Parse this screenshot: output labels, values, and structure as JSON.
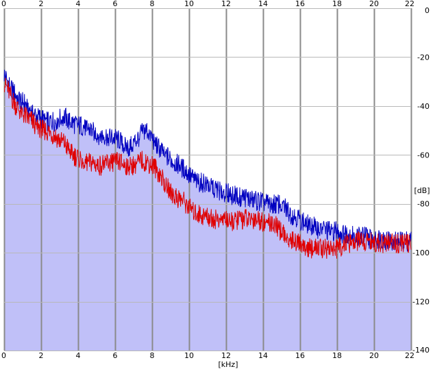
{
  "chart_data": {
    "type": "area",
    "xlabel": "[kHz]",
    "ylabel": "[dB]",
    "xlim": [
      0,
      22
    ],
    "ylim": [
      -140,
      0
    ],
    "x_ticks": [
      0,
      2,
      4,
      6,
      8,
      10,
      12,
      14,
      16,
      18,
      20,
      22
    ],
    "y_ticks": [
      0,
      -20,
      -40,
      -60,
      -80,
      -100,
      -120,
      -140
    ],
    "grid": true,
    "x_step_khz": 0.25,
    "series": [
      {
        "color": "#0000c0",
        "values": [
          -27,
          -31,
          -34,
          -37,
          -38,
          -40,
          -42,
          -44,
          -45,
          -46,
          -46,
          -46,
          -45,
          -44,
          -46,
          -47,
          -48,
          -48,
          -49,
          -50,
          -51,
          -52,
          -52,
          -53,
          -53,
          -54,
          -56,
          -57,
          -55,
          -53,
          -50,
          -50,
          -53,
          -56,
          -58,
          -60,
          -62,
          -63,
          -64,
          -66,
          -68,
          -70,
          -71,
          -71,
          -72,
          -73,
          -74,
          -75,
          -75,
          -76,
          -76,
          -77,
          -77,
          -78,
          -78,
          -79,
          -79,
          -80,
          -80,
          -80,
          -80,
          -82,
          -84,
          -85,
          -86,
          -88,
          -88,
          -89,
          -90,
          -90,
          -91,
          -91,
          -91,
          -92,
          -92,
          -92,
          -93,
          -93,
          -93,
          -94,
          -94,
          -94,
          -94,
          -95,
          -95,
          -95,
          -95,
          -95,
          -95
        ]
      },
      {
        "color": "#e00000",
        "values": [
          -30,
          -34,
          -38,
          -41,
          -43,
          -45,
          -46,
          -48,
          -49,
          -50,
          -51,
          -52,
          -54,
          -55,
          -58,
          -60,
          -61,
          -62,
          -63,
          -63,
          -64,
          -64,
          -63,
          -63,
          -62,
          -63,
          -64,
          -64,
          -64,
          -63,
          -62,
          -63,
          -64,
          -66,
          -69,
          -72,
          -75,
          -77,
          -78,
          -79,
          -81,
          -83,
          -84,
          -85,
          -85,
          -86,
          -86,
          -86,
          -86,
          -87,
          -87,
          -86,
          -86,
          -86,
          -86,
          -86,
          -87,
          -87,
          -88,
          -89,
          -91,
          -93,
          -94,
          -95,
          -96,
          -97,
          -98,
          -98,
          -98,
          -98,
          -98,
          -98,
          -98,
          -97,
          -96,
          -96,
          -95,
          -95,
          -95,
          -95,
          -96,
          -96,
          -96,
          -96,
          -96,
          -96,
          -96,
          -96,
          -96
        ]
      }
    ]
  }
}
